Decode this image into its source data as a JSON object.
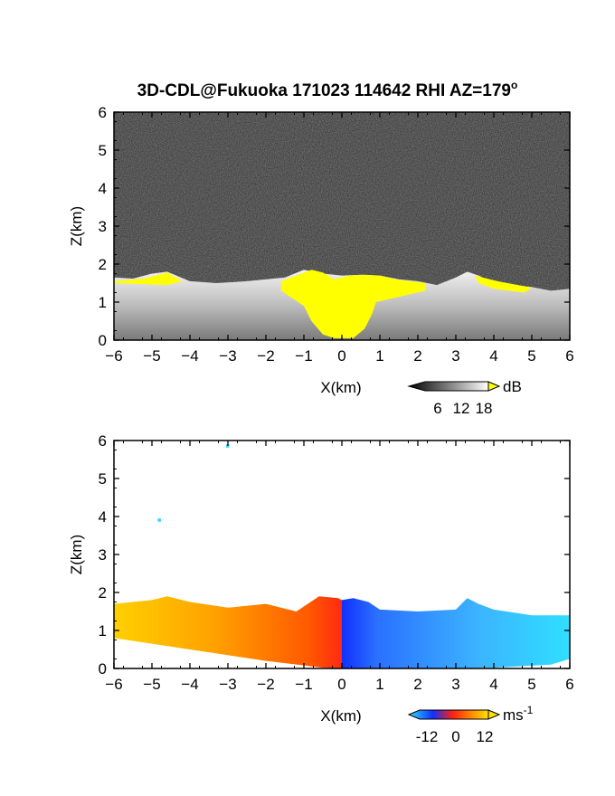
{
  "title": "3D-CDL@Fukuoka 171023 114642 RHI AZ=179",
  "title_sup": "o",
  "colors": {
    "frame": "#000000",
    "background_noise": "#222222",
    "saturation_yellow": "#ffff00",
    "velocity_negative": "#1a3cff",
    "velocity_zero": "#ff3000",
    "velocity_positive": "#ffd24a",
    "velocity_far_negative": "#2fd5ff"
  },
  "chart_data": [
    {
      "type": "heatmap",
      "name": "snr",
      "title": "3D-CDL@Fukuoka 171023 114642 RHI AZ=179o",
      "xlabel": "X(km)",
      "ylabel": "Z(km)",
      "xlim": [
        -6,
        6
      ],
      "ylim": [
        0,
        6
      ],
      "x_ticks": [
        -6,
        -5,
        -4,
        -3,
        -2,
        -1,
        0,
        1,
        2,
        3,
        4,
        5,
        6
      ],
      "y_ticks": [
        0,
        1,
        2,
        3,
        4,
        5,
        6
      ],
      "colorbar": {
        "unit": "dB",
        "tick_labels": [
          "6",
          "12",
          "18"
        ]
      },
      "boundary_layer_top": {
        "x": [
          -6,
          -5.5,
          -5,
          -4.6,
          -4,
          -3.3,
          -2.5,
          -1.5,
          -1.0,
          -0.5,
          0,
          0.5,
          1.0,
          1.5,
          2.0,
          2.5,
          3.0,
          3.3,
          3.6,
          4.0,
          4.5,
          5.0,
          5.5,
          6
        ],
        "z": [
          1.65,
          1.62,
          1.75,
          1.8,
          1.55,
          1.5,
          1.55,
          1.65,
          1.85,
          1.75,
          1.7,
          1.72,
          1.7,
          1.6,
          1.55,
          1.45,
          1.65,
          1.8,
          1.7,
          1.5,
          1.45,
          1.4,
          1.3,
          1.35
        ]
      },
      "saturated_core": {
        "x": [
          -1.0,
          -0.8,
          -0.5,
          -0.2,
          0.0,
          0.3,
          0.6,
          0.8,
          0.9
        ],
        "z": [
          0.9,
          0.5,
          0.15,
          0.05,
          0.05,
          0.05,
          0.3,
          0.7,
          1.0
        ]
      }
    },
    {
      "type": "heatmap",
      "name": "doppler_velocity",
      "xlabel": "X(km)",
      "ylabel": "Z(km)",
      "xlim": [
        -6,
        6
      ],
      "ylim": [
        0,
        6
      ],
      "x_ticks": [
        -6,
        -5,
        -4,
        -3,
        -2,
        -1,
        0,
        1,
        2,
        3,
        4,
        5,
        6
      ],
      "y_ticks": [
        0,
        1,
        2,
        3,
        4,
        5,
        6
      ],
      "colorbar": {
        "unit": "ms",
        "unit_sup": "-1",
        "tick_labels": [
          "-12",
          "0",
          "12"
        ]
      },
      "echo_top": {
        "x": [
          -6,
          -5,
          -4.6,
          -4,
          -3,
          -2,
          -1.2,
          -0.6,
          -0.1,
          0,
          0.3,
          0.7,
          1,
          2,
          3,
          3.3,
          3.6,
          4,
          5,
          6
        ],
        "z": [
          1.7,
          1.8,
          1.9,
          1.75,
          1.6,
          1.7,
          1.5,
          1.9,
          1.85,
          1.8,
          1.85,
          1.75,
          1.55,
          1.5,
          1.55,
          1.85,
          1.7,
          1.55,
          1.4,
          1.4
        ]
      },
      "isolated_points": [
        {
          "x": -3.0,
          "z": 5.85
        },
        {
          "x": -4.8,
          "z": 3.9
        }
      ]
    }
  ]
}
